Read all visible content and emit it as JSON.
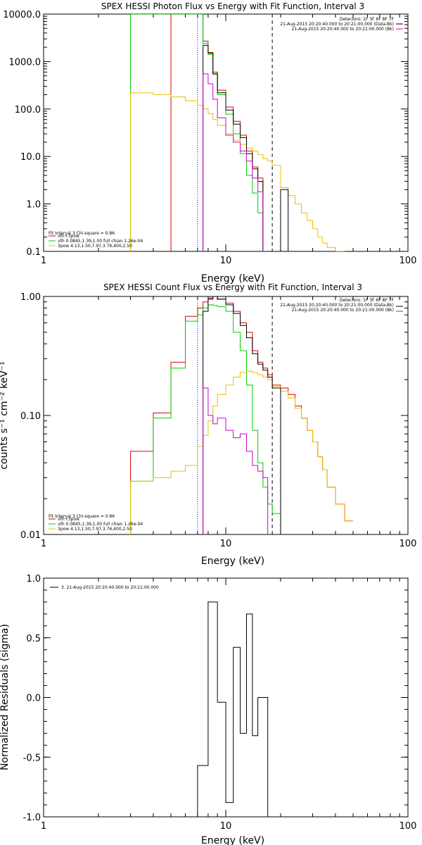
{
  "chart_data": [
    {
      "type": "line",
      "title": "SPEX HESSI Photon Flux vs Energy with Fit Function, Interval 3",
      "xlabel": "Energy (keV)",
      "ylabel": "",
      "xscale": "log",
      "yscale": "log",
      "xlim": [
        1,
        100
      ],
      "ylim": [
        0.1,
        10000
      ],
      "xticks": [
        "1",
        "10",
        "100"
      ],
      "yticks": [
        "0.1",
        "1.0",
        "10.0",
        "100.0",
        "1000.0",
        "10000.0"
      ],
      "ytick_values": [
        0.1,
        1,
        10,
        100,
        1000,
        10000
      ],
      "info_lines": [
        "Detectors: 1F 3F 6F 8F 7F",
        "21-Aug-2015 20:20:40.000 to 20:21:00.000 (Data-Bk)",
        "21-Aug-2015 20:20:40.000 to 20:21:00.000 (Bk)"
      ],
      "fit_text": "Fit Interval 3   Chi-square = 0.86",
      "legend_position": "bottom-left",
      "vlines": [
        {
          "x": 7.0,
          "style": "dotted",
          "color": "#0000ff"
        },
        {
          "x": 18.0,
          "style": "dashed",
          "color": "#000000"
        }
      ],
      "energy_edges": [
        3,
        4,
        5,
        6,
        7,
        7.5,
        8,
        8.5,
        9,
        10,
        11,
        12,
        13,
        14,
        15,
        16,
        17,
        18,
        20,
        22,
        24,
        26,
        28,
        30,
        32,
        34,
        36,
        40,
        45
      ],
      "series": [
        {
          "name": "vth+3pow",
          "color": "#dd0000",
          "values": [
            null,
            null,
            10000,
            10000,
            10000,
            2700,
            1550,
            600,
            250,
            110,
            55,
            28,
            13,
            6,
            3.5
          ]
        },
        {
          "name": "vth 0.0845,1.39,1.00  full chian 1.26e-04",
          "color": "#00cc00",
          "values": [
            10000,
            10000,
            10000,
            10000,
            10000,
            2400,
            1400,
            540,
            200,
            78,
            30,
            11.5,
            4,
            1.7,
            0.65
          ]
        },
        {
          "name": "3pow 4.13,1.50,7.97,3.76,400,2.50",
          "color": "#e8c000",
          "values": [
            220,
            200,
            180,
            150,
            120,
            100,
            80,
            60,
            45,
            30,
            22,
            18,
            15,
            13,
            11,
            9,
            8,
            6.5,
            2.2,
            1.5,
            1,
            0.65,
            0.45,
            0.3,
            0.2,
            0.15,
            0.12,
            0.1
          ]
        },
        {
          "name": "",
          "color": "#000000",
          "values": [
            null,
            null,
            null,
            null,
            null,
            2200,
            1500,
            550,
            220,
            95,
            48,
            25,
            11.5,
            5.5,
            3,
            null,
            null,
            null,
            2
          ]
        },
        {
          "name": "",
          "color": "#cc00cc",
          "values": [
            null,
            null,
            null,
            null,
            null,
            550,
            340,
            160,
            65,
            28,
            20,
            13,
            8,
            3.5,
            1.8,
            null,
            null,
            null,
            null
          ]
        }
      ]
    },
    {
      "type": "line",
      "title": "SPEX HESSI Count Flux vs Energy with Fit Function, Interval 3",
      "xlabel": "Energy (keV)",
      "ylabel": "counts s⁻¹ cm⁻² keV⁻¹",
      "xscale": "log",
      "yscale": "log",
      "xlim": [
        1,
        100
      ],
      "ylim": [
        0.01,
        1.0
      ],
      "xticks": [
        "1",
        "10",
        "100"
      ],
      "yticks": [
        "0.01",
        "0.10",
        "1.00"
      ],
      "ytick_values": [
        0.01,
        0.1,
        1.0
      ],
      "info_lines": [
        "Detectors: 1F 3F 6F 8F 7F",
        "21-Aug-2015 20:20:40.000 to 20:21:00.000 (Data-Bk)",
        "21-Aug-2015 20:20:40.000 to 20:21:00.000 (Bk)"
      ],
      "fit_text": "Fit Interval 3   Chi-square = 0.86",
      "legend_position": "bottom-left",
      "vlines": [
        {
          "x": 7.0,
          "style": "dotted",
          "color": "#0000ff"
        },
        {
          "x": 18.0,
          "style": "dashed",
          "color": "#000000"
        }
      ],
      "energy_edges": [
        3,
        4,
        5,
        6,
        7,
        7.5,
        8,
        8.5,
        9,
        10,
        11,
        12,
        13,
        14,
        15,
        16,
        17,
        18,
        20,
        22,
        24,
        26,
        28,
        30,
        32,
        34,
        36,
        40,
        45,
        50
      ],
      "series": [
        {
          "name": "vth+3pow",
          "color": "#dd0000",
          "values": [
            0.05,
            0.105,
            0.28,
            0.68,
            0.8,
            0.9,
            0.97,
            1.0,
            0.95,
            0.88,
            0.75,
            0.6,
            0.5,
            0.35,
            0.28,
            0.25,
            0.22,
            0.18,
            0.17,
            0.15,
            0.12,
            0.095,
            0.075,
            0.06,
            0.045,
            0.035,
            0.025,
            0.018,
            0.013,
            0.01
          ]
        },
        {
          "name": "vth 0.0845,1.39,1.00  full chian 1.26e-04",
          "color": "#00cc00",
          "values": [
            0.028,
            0.095,
            0.25,
            0.62,
            0.7,
            0.8,
            0.85,
            0.84,
            0.82,
            0.75,
            0.5,
            0.35,
            0.18,
            0.075,
            0.04,
            0.025,
            0.018,
            0.015
          ]
        },
        {
          "name": "3pow 4.13,1.50,7.97,3.76,400,2.50",
          "color": "#e8c000",
          "values": [
            0.028,
            0.03,
            0.034,
            0.038,
            0.055,
            0.068,
            0.09,
            0.12,
            0.15,
            0.18,
            0.21,
            0.23,
            0.235,
            0.23,
            0.22,
            0.21,
            0.2,
            0.175,
            0.16,
            0.14,
            0.115,
            0.095,
            0.075,
            0.06,
            0.045,
            0.035,
            0.025,
            0.018,
            0.013,
            0.01
          ]
        },
        {
          "name": "",
          "color": "#000000",
          "values": [
            null,
            null,
            null,
            null,
            null,
            0.75,
            0.95,
            1.0,
            0.95,
            0.85,
            0.72,
            0.57,
            0.45,
            0.33,
            0.27,
            0.24,
            0.21,
            0.17,
            null
          ]
        },
        {
          "name": "",
          "color": "#cc00cc",
          "values": [
            null,
            null,
            null,
            null,
            null,
            0.17,
            0.1,
            0.085,
            0.095,
            0.075,
            0.065,
            0.07,
            0.05,
            0.038,
            0.034,
            0.03,
            null,
            null
          ]
        }
      ]
    },
    {
      "type": "line",
      "title": "",
      "xlabel": "Energy (keV)",
      "ylabel": "Normalized Residuals (sigma)",
      "xscale": "log",
      "yscale": "linear",
      "xlim": [
        1,
        100
      ],
      "ylim": [
        -1.0,
        1.0
      ],
      "xticks": [
        "1",
        "10",
        "100"
      ],
      "yticks": [
        "-1.0",
        "-0.5",
        "0.0",
        "0.5",
        "1.0"
      ],
      "ytick_values": [
        -1.0,
        -0.5,
        0.0,
        0.5,
        1.0
      ],
      "legend_position": "top-left",
      "legend": [
        {
          "name": "3. 21-Aug-2015 20:20:40.000 to 20:21:00.000",
          "color": "#000000"
        }
      ],
      "energy_edges": [
        7,
        8,
        9,
        10,
        11,
        12,
        13,
        14,
        15,
        16,
        17,
        18
      ],
      "residuals": [
        -0.57,
        0.8,
        -0.04,
        -0.88,
        0.42,
        -0.3,
        0.7,
        -0.32,
        0.0,
        0.0,
        -1.0
      ]
    }
  ]
}
